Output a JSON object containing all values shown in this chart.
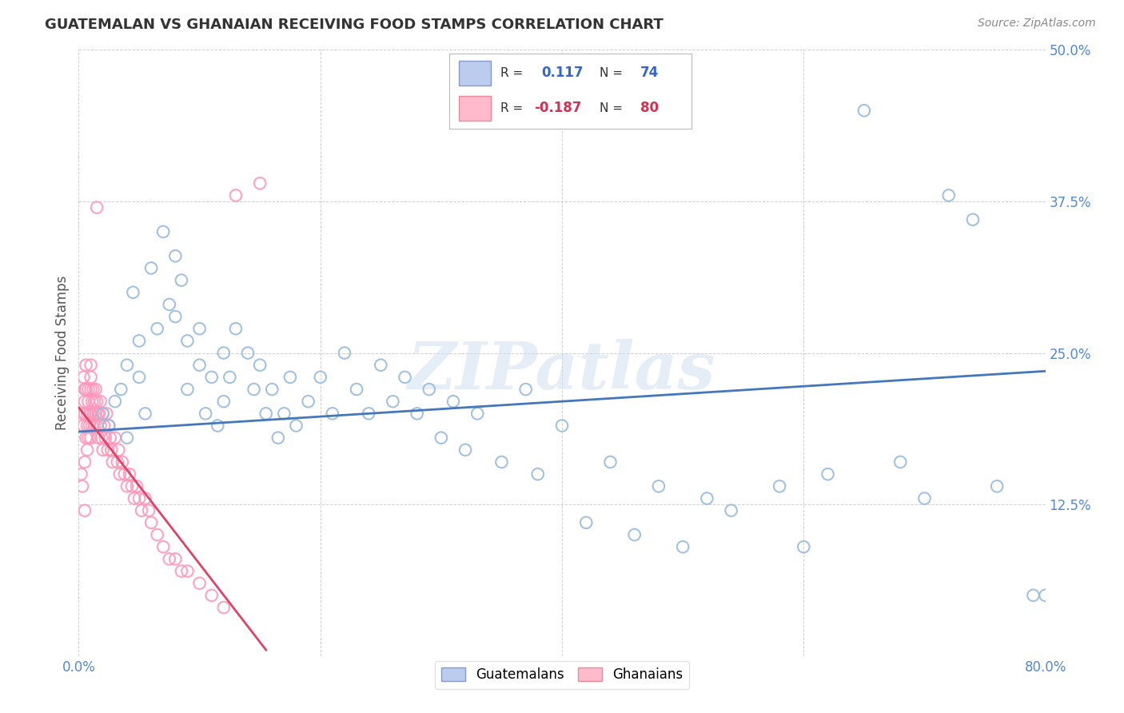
{
  "title": "GUATEMALAN VS GHANAIAN RECEIVING FOOD STAMPS CORRELATION CHART",
  "source": "Source: ZipAtlas.com",
  "ylabel": "Receiving Food Stamps",
  "xlim": [
    0.0,
    0.8
  ],
  "ylim": [
    0.0,
    0.5
  ],
  "xtick_vals": [
    0.0,
    0.2,
    0.4,
    0.6,
    0.8
  ],
  "xtick_labels": [
    "0.0%",
    "",
    "",
    "",
    "80.0%"
  ],
  "ytick_vals": [
    0.0,
    0.125,
    0.25,
    0.375,
    0.5
  ],
  "ytick_labels": [
    "",
    "12.5%",
    "25.0%",
    "37.5%",
    "50.0%"
  ],
  "background_color": "#ffffff",
  "blue_scatter_color": "#99bbdd",
  "pink_scatter_color": "#ff99bb",
  "blue_line_color": "#4477bb",
  "pink_line_color": "#dd4466",
  "legend_R1": "0.117",
  "legend_N1": "74",
  "legend_R2": "-0.187",
  "legend_N2": "80",
  "guatemalan_label": "Guatemalans",
  "ghanaian_label": "Ghanaians",
  "blue_x": [
    0.02,
    0.025,
    0.03,
    0.035,
    0.04,
    0.04,
    0.045,
    0.05,
    0.05,
    0.055,
    0.06,
    0.065,
    0.07,
    0.075,
    0.08,
    0.08,
    0.085,
    0.09,
    0.09,
    0.1,
    0.1,
    0.105,
    0.11,
    0.115,
    0.12,
    0.12,
    0.125,
    0.13,
    0.14,
    0.145,
    0.15,
    0.155,
    0.16,
    0.165,
    0.17,
    0.175,
    0.18,
    0.19,
    0.2,
    0.21,
    0.22,
    0.23,
    0.24,
    0.25,
    0.26,
    0.27,
    0.28,
    0.29,
    0.3,
    0.31,
    0.32,
    0.33,
    0.35,
    0.37,
    0.38,
    0.4,
    0.42,
    0.44,
    0.46,
    0.48,
    0.5,
    0.52,
    0.54,
    0.58,
    0.6,
    0.62,
    0.65,
    0.68,
    0.7,
    0.72,
    0.74,
    0.76,
    0.79,
    0.8
  ],
  "blue_y": [
    0.2,
    0.19,
    0.21,
    0.22,
    0.18,
    0.24,
    0.3,
    0.23,
    0.26,
    0.2,
    0.32,
    0.27,
    0.35,
    0.29,
    0.33,
    0.28,
    0.31,
    0.22,
    0.26,
    0.24,
    0.27,
    0.2,
    0.23,
    0.19,
    0.21,
    0.25,
    0.23,
    0.27,
    0.25,
    0.22,
    0.24,
    0.2,
    0.22,
    0.18,
    0.2,
    0.23,
    0.19,
    0.21,
    0.23,
    0.2,
    0.25,
    0.22,
    0.2,
    0.24,
    0.21,
    0.23,
    0.2,
    0.22,
    0.18,
    0.21,
    0.17,
    0.2,
    0.16,
    0.22,
    0.15,
    0.19,
    0.11,
    0.16,
    0.1,
    0.14,
    0.09,
    0.13,
    0.12,
    0.14,
    0.09,
    0.15,
    0.45,
    0.16,
    0.13,
    0.38,
    0.36,
    0.14,
    0.05,
    0.05
  ],
  "pink_x": [
    0.002,
    0.003,
    0.003,
    0.004,
    0.004,
    0.005,
    0.005,
    0.005,
    0.005,
    0.005,
    0.006,
    0.006,
    0.006,
    0.007,
    0.007,
    0.007,
    0.008,
    0.008,
    0.008,
    0.009,
    0.009,
    0.01,
    0.01,
    0.01,
    0.01,
    0.011,
    0.011,
    0.012,
    0.012,
    0.013,
    0.013,
    0.014,
    0.014,
    0.015,
    0.015,
    0.016,
    0.016,
    0.017,
    0.018,
    0.018,
    0.019,
    0.02,
    0.02,
    0.021,
    0.022,
    0.023,
    0.024,
    0.025,
    0.026,
    0.027,
    0.028,
    0.03,
    0.032,
    0.033,
    0.034,
    0.036,
    0.038,
    0.04,
    0.042,
    0.044,
    0.046,
    0.048,
    0.05,
    0.052,
    0.055,
    0.058,
    0.06,
    0.065,
    0.07,
    0.075,
    0.08,
    0.085,
    0.09,
    0.1,
    0.11,
    0.12,
    0.13,
    0.15,
    0.01,
    0.015
  ],
  "pink_y": [
    0.15,
    0.14,
    0.2,
    0.19,
    0.23,
    0.22,
    0.21,
    0.2,
    0.16,
    0.12,
    0.24,
    0.22,
    0.18,
    0.2,
    0.19,
    0.17,
    0.22,
    0.21,
    0.18,
    0.2,
    0.19,
    0.23,
    0.22,
    0.2,
    0.18,
    0.21,
    0.19,
    0.22,
    0.2,
    0.21,
    0.19,
    0.22,
    0.2,
    0.21,
    0.19,
    0.2,
    0.18,
    0.2,
    0.21,
    0.19,
    0.18,
    0.2,
    0.17,
    0.19,
    0.18,
    0.2,
    0.17,
    0.19,
    0.18,
    0.17,
    0.16,
    0.18,
    0.16,
    0.17,
    0.15,
    0.16,
    0.15,
    0.14,
    0.15,
    0.14,
    0.13,
    0.14,
    0.13,
    0.12,
    0.13,
    0.12,
    0.11,
    0.1,
    0.09,
    0.08,
    0.08,
    0.07,
    0.07,
    0.06,
    0.05,
    0.04,
    0.38,
    0.39,
    0.24,
    0.37
  ],
  "blue_line_x": [
    0.0,
    0.8
  ],
  "blue_line_y": [
    0.185,
    0.235
  ],
  "pink_line_x": [
    0.0,
    0.155
  ],
  "pink_line_y": [
    0.205,
    0.005
  ]
}
